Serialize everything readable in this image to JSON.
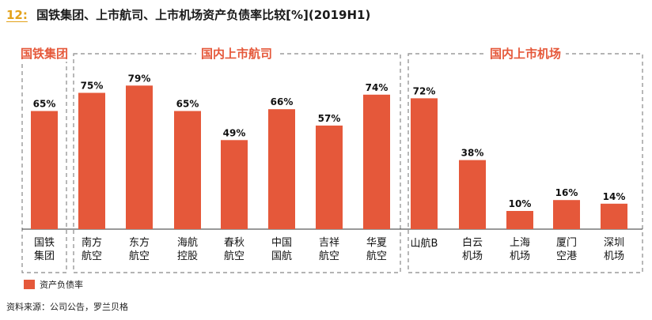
{
  "header": {
    "fig_num": "12:",
    "title": "国铁集团、上市航司、上市机场资产负债率比较[%](2019H1)"
  },
  "groups": [
    "国铁集团",
    "国内上市航司",
    "国内上市机场"
  ],
  "legend": {
    "label": "资产负债率"
  },
  "source": "资料来源：公司公告，罗兰贝格",
  "colors": {
    "bar": "#e5583a",
    "group_label": "#e5583a",
    "fig_num": "#e3a21a",
    "dash": "#888888"
  },
  "chart_data": {
    "type": "bar",
    "categories": [
      [
        "国铁",
        "集团"
      ],
      [
        "南方",
        "航空"
      ],
      [
        "东方",
        "航空"
      ],
      [
        "海航",
        "控股"
      ],
      [
        "春秋",
        "航空"
      ],
      [
        "中国",
        "国航"
      ],
      [
        "吉祥",
        "航空"
      ],
      [
        "华夏",
        "航空"
      ],
      [
        "山航B"
      ],
      [
        "白云",
        "机场"
      ],
      [
        "上海",
        "机场"
      ],
      [
        "厦门",
        "空港"
      ],
      [
        "深圳",
        "机场"
      ]
    ],
    "values": [
      65,
      75,
      79,
      65,
      49,
      66,
      57,
      74,
      72,
      38,
      10,
      16,
      14
    ],
    "data_labels": [
      "65%",
      "75%",
      "79%",
      "65%",
      "49%",
      "66%",
      "57%",
      "74%",
      "72%",
      "38%",
      "10%",
      "16%",
      "14%"
    ],
    "series": [
      {
        "name": "资产负债率",
        "values": [
          65,
          75,
          79,
          65,
          49,
          66,
          57,
          74,
          72,
          38,
          10,
          16,
          14
        ]
      }
    ],
    "title": "国铁集团、上市航司、上市机场资产负债率比较[%](2019H1)",
    "ylim": [
      0,
      100
    ],
    "grid": false,
    "legend_position": "bottom-left"
  }
}
